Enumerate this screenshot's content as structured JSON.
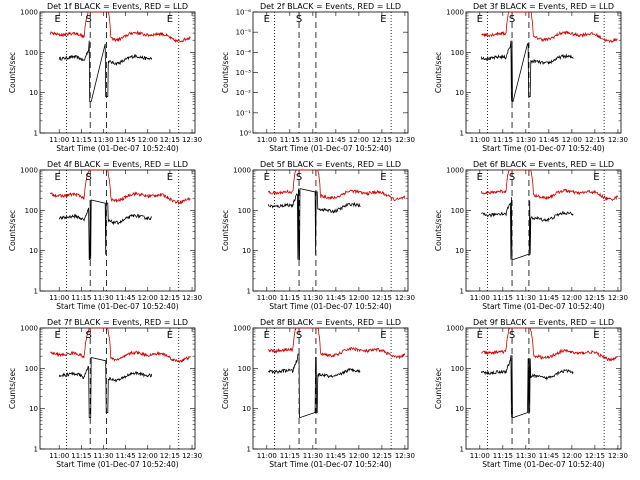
{
  "figure": {
    "background": "#ffffff",
    "colors": {
      "events": "#000000",
      "lld": "#cc0000",
      "axes": "#000000"
    }
  },
  "chart_data": [
    {
      "type": "line",
      "title": "Det 1f BLACK = Events, RED = LLD",
      "xlabel": "Start Time (01-Dec-07 10:52:40)",
      "ylabel": "Counts/sec",
      "x_ticks": [
        "11:00",
        "11:15",
        "11:30",
        "11:45",
        "12:00",
        "12:15",
        "12:30"
      ],
      "x_range_minutes": [
        647,
        752
      ],
      "y_scale": "log",
      "ylim": [
        1,
        1000
      ],
      "y_ticks": [
        "1",
        "10",
        "100",
        "1000"
      ],
      "dotted_lines_at": [
        "11:05",
        "12:21"
      ],
      "dashed_lines_at": [
        "11:21",
        "11:32"
      ],
      "markers": [
        {
          "text": "E",
          "at": "10:59"
        },
        {
          "text": "S",
          "at": "11:20"
        },
        {
          "text": "E",
          "at": "12:15"
        }
      ],
      "series": [
        {
          "name": "Events",
          "color": "#000000",
          "level": 65,
          "x_start_minutes": 660,
          "x_end_minutes": 723
        },
        {
          "name": "LLD",
          "color": "#cc0000",
          "level": 250,
          "x_start_minutes": 654,
          "x_end_minutes": 749
        }
      ]
    },
    {
      "type": "line",
      "title": "Det 2f BLACK = Events, RED = LLD",
      "xlabel": "Start Time (01-Dec-07 10:52:40)",
      "ylabel": "Counts/sec",
      "x_ticks": [
        "11:00",
        "11:15",
        "11:30",
        "11:45",
        "12:00",
        "12:15",
        "12:30"
      ],
      "x_range_minutes": [
        651,
        752
      ],
      "y_scale": "log",
      "ylim": [
        1,
        1e-06
      ],
      "y_ticks": [
        "10⁰",
        "10⁻¹",
        "10⁻²",
        "10⁻³",
        "10⁻⁴",
        "10⁻⁵",
        "10⁻⁶"
      ],
      "dotted_lines_at": [
        "11:05",
        "12:21"
      ],
      "dashed_lines_at": [
        "11:21",
        "11:32"
      ],
      "markers": [
        {
          "text": "E",
          "at": "11:00"
        },
        {
          "text": "S",
          "at": "11:21"
        },
        {
          "text": "E",
          "at": "12:16"
        }
      ],
      "series": []
    },
    {
      "type": "line",
      "title": "Det 3f BLACK = Events, RED = LLD",
      "xlabel": "Start Time (01-Dec-07 10:52:40)",
      "ylabel": "Counts/sec",
      "x_ticks": [
        "11:00",
        "11:15",
        "11:30",
        "11:45",
        "12:00",
        "12:15",
        "12:30"
      ],
      "x_range_minutes": [
        651,
        752
      ],
      "y_scale": "log",
      "ylim": [
        1,
        1000
      ],
      "y_ticks": [
        "1",
        "10",
        "100",
        "1000"
      ],
      "dotted_lines_at": [
        "11:05",
        "12:21"
      ],
      "dashed_lines_at": [
        "11:21",
        "11:32"
      ],
      "markers": [
        {
          "text": "E",
          "at": "11:00"
        },
        {
          "text": "S",
          "at": "11:21"
        },
        {
          "text": "E",
          "at": "12:16"
        }
      ],
      "series": [
        {
          "name": "Events",
          "color": "#000000",
          "level": 65,
          "x_start_minutes": 661,
          "x_end_minutes": 721
        },
        {
          "name": "LLD",
          "color": "#cc0000",
          "level": 250,
          "x_start_minutes": 661,
          "x_end_minutes": 750
        }
      ]
    },
    {
      "type": "line",
      "title": "Det 4f BLACK = Events, RED = LLD",
      "xlabel": "Start Time (01-Dec-07 10:52:40)",
      "ylabel": "Counts/sec",
      "x_ticks": [
        "11:00",
        "11:15",
        "11:30",
        "11:45",
        "12:00",
        "12:15",
        "12:30"
      ],
      "x_range_minutes": [
        647,
        752
      ],
      "y_scale": "log",
      "ylim": [
        1,
        1000
      ],
      "y_ticks": [
        "1",
        "10",
        "100",
        "1000"
      ],
      "dotted_lines_at": [
        "11:05",
        "12:21"
      ],
      "dashed_lines_at": [
        "11:21",
        "11:32"
      ],
      "markers": [
        {
          "text": "E",
          "at": "10:59"
        },
        {
          "text": "S",
          "at": "11:20"
        },
        {
          "text": "E",
          "at": "12:15"
        }
      ],
      "series": [
        {
          "name": "Events",
          "color": "#000000",
          "level": 60,
          "x_start_minutes": 660,
          "x_end_minutes": 723
        },
        {
          "name": "LLD",
          "color": "#cc0000",
          "level": 210,
          "x_start_minutes": 654,
          "x_end_minutes": 749
        }
      ]
    },
    {
      "type": "line",
      "title": "Det 5f BLACK = Events, RED = LLD",
      "xlabel": "Start Time (01-Dec-07 10:52:40)",
      "ylabel": "Counts/sec",
      "x_ticks": [
        "11:00",
        "11:15",
        "11:30",
        "11:45",
        "12:00",
        "12:15",
        "12:30"
      ],
      "x_range_minutes": [
        651,
        752
      ],
      "y_scale": "log",
      "ylim": [
        1,
        1000
      ],
      "y_ticks": [
        "1",
        "10",
        "100",
        "1000"
      ],
      "dotted_lines_at": [
        "11:05",
        "12:21"
      ],
      "dashed_lines_at": [
        "11:21",
        "11:32"
      ],
      "markers": [
        {
          "text": "E",
          "at": "11:00"
        },
        {
          "text": "S",
          "at": "11:21"
        },
        {
          "text": "E",
          "at": "12:16"
        }
      ],
      "series": [
        {
          "name": "Events",
          "color": "#000000",
          "level": 115,
          "x_start_minutes": 661,
          "x_end_minutes": 721
        },
        {
          "name": "LLD",
          "color": "#cc0000",
          "level": 245,
          "x_start_minutes": 661,
          "x_end_minutes": 750
        }
      ]
    },
    {
      "type": "line",
      "title": "Det 6f BLACK = Events, RED = LLD",
      "xlabel": "Start Time (01-Dec-07 10:52:40)",
      "ylabel": "Counts/sec",
      "x_ticks": [
        "11:00",
        "11:15",
        "11:30",
        "11:45",
        "12:00",
        "12:15",
        "12:30"
      ],
      "x_range_minutes": [
        651,
        752
      ],
      "y_scale": "log",
      "ylim": [
        1,
        1000
      ],
      "y_ticks": [
        "1",
        "10",
        "100",
        "1000"
      ],
      "dotted_lines_at": [
        "11:05",
        "12:21"
      ],
      "dashed_lines_at": [
        "11:21",
        "11:32"
      ],
      "markers": [
        {
          "text": "E",
          "at": "11:00"
        },
        {
          "text": "S",
          "at": "11:21"
        },
        {
          "text": "E",
          "at": "12:16"
        }
      ],
      "series": [
        {
          "name": "Events",
          "color": "#000000",
          "level": 70,
          "x_start_minutes": 661,
          "x_end_minutes": 721
        },
        {
          "name": "LLD",
          "color": "#cc0000",
          "level": 250,
          "x_start_minutes": 661,
          "x_end_minutes": 750
        }
      ]
    },
    {
      "type": "line",
      "title": "Det 7f BLACK = Events, RED = LLD",
      "xlabel": "Start Time (01-Dec-07 10:52:40)",
      "ylabel": "Counts/sec",
      "x_ticks": [
        "11:00",
        "11:15",
        "11:30",
        "11:45",
        "12:00",
        "12:15",
        "12:30"
      ],
      "x_range_minutes": [
        647,
        752
      ],
      "y_scale": "log",
      "ylim": [
        1,
        1000
      ],
      "y_ticks": [
        "1",
        "10",
        "100",
        "1000"
      ],
      "dotted_lines_at": [
        "11:05",
        "12:21"
      ],
      "dashed_lines_at": [
        "11:21",
        "11:32"
      ],
      "markers": [
        {
          "text": "E",
          "at": "10:59"
        },
        {
          "text": "S",
          "at": "11:20"
        },
        {
          "text": "E",
          "at": "12:15"
        }
      ],
      "series": [
        {
          "name": "Events",
          "color": "#000000",
          "level": 62,
          "x_start_minutes": 660,
          "x_end_minutes": 723
        },
        {
          "name": "LLD",
          "color": "#cc0000",
          "level": 200,
          "x_start_minutes": 654,
          "x_end_minutes": 749
        }
      ]
    },
    {
      "type": "line",
      "title": "Det 8f BLACK = Events, RED = LLD",
      "xlabel": "Start Time (01-Dec-07 10:52:40)",
      "ylabel": "Counts/sec",
      "x_ticks": [
        "11:00",
        "11:15",
        "11:30",
        "11:45",
        "12:00",
        "12:15",
        "12:30"
      ],
      "x_range_minutes": [
        651,
        752
      ],
      "y_scale": "log",
      "ylim": [
        1,
        1000
      ],
      "y_ticks": [
        "1",
        "10",
        "100",
        "1000"
      ],
      "dotted_lines_at": [
        "11:05",
        "12:21"
      ],
      "dashed_lines_at": [
        "11:21",
        "11:32"
      ],
      "markers": [
        {
          "text": "E",
          "at": "11:00"
        },
        {
          "text": "S",
          "at": "11:21"
        },
        {
          "text": "E",
          "at": "12:16"
        }
      ],
      "series": [
        {
          "name": "Events",
          "color": "#000000",
          "level": 75,
          "x_start_minutes": 661,
          "x_end_minutes": 721
        },
        {
          "name": "LLD",
          "color": "#cc0000",
          "level": 250,
          "x_start_minutes": 661,
          "x_end_minutes": 750
        }
      ]
    },
    {
      "type": "line",
      "title": "Det 9f BLACK = Events, RED = LLD",
      "xlabel": "Start Time (01-Dec-07 10:52:40)",
      "ylabel": "Counts/sec",
      "x_ticks": [
        "11:00",
        "11:15",
        "11:30",
        "11:45",
        "12:00",
        "12:15",
        "12:30"
      ],
      "x_range_minutes": [
        651,
        752
      ],
      "y_scale": "log",
      "ylim": [
        1,
        1000
      ],
      "y_ticks": [
        "1",
        "10",
        "100",
        "1000"
      ],
      "dotted_lines_at": [
        "11:05",
        "12:21"
      ],
      "dashed_lines_at": [
        "11:21",
        "11:32"
      ],
      "markers": [
        {
          "text": "E",
          "at": "11:00"
        },
        {
          "text": "S",
          "at": "11:21"
        },
        {
          "text": "E",
          "at": "12:16"
        }
      ],
      "series": [
        {
          "name": "Events",
          "color": "#000000",
          "level": 70,
          "x_start_minutes": 661,
          "x_end_minutes": 721
        },
        {
          "name": "LLD",
          "color": "#cc0000",
          "level": 220,
          "x_start_minutes": 661,
          "x_end_minutes": 750
        }
      ]
    }
  ]
}
